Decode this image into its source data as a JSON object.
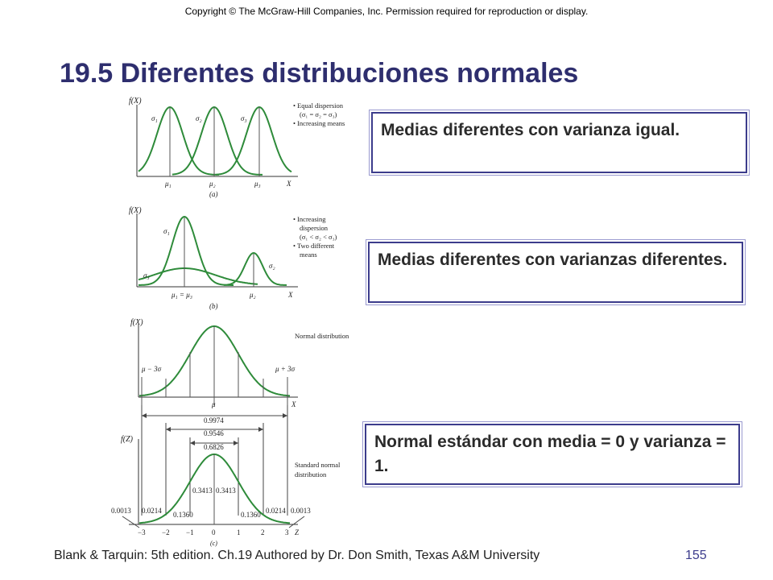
{
  "copyright": "Copyright © The McGraw-Hill Companies, Inc. Permission required for reproduction or display.",
  "title": "19.5 Diferentes distribuciones normales",
  "callouts": {
    "equal_variance": "Medias diferentes con varianza igual.",
    "different_variance": "Medias diferentes con varianzas diferentes.",
    "standard_normal": "Normal estándar con media = 0 y varianza = 1."
  },
  "figure": {
    "panel_a": {
      "ylabel": "f(X)",
      "xlabel": "X",
      "caption": "(a)",
      "sigma_labels": [
        "σ₁",
        "σ₂",
        "σ₃"
      ],
      "mu_labels": [
        "μ₁",
        "μ₂",
        "μ₃"
      ],
      "notes": [
        "• Equal dispersion",
        "(σ₁ = σ₂ = σ₃)",
        "• Increasing means"
      ]
    },
    "panel_b": {
      "ylabel": "f(X)",
      "xlabel": "X",
      "caption": "(b)",
      "sigma_labels": [
        "σ₁",
        "σ₂",
        "σ₃"
      ],
      "mu_labels": [
        "μ₁ = μ₃",
        "μ₂"
      ],
      "notes": [
        "• Increasing",
        "dispersion",
        "(σ₁ < σ₂ < σ₃)",
        "• Two different",
        "means"
      ]
    },
    "panel_c": {
      "ylabel_top": "f(X)",
      "ylabel_bottom": "f(Z)",
      "xlabel_top": "X",
      "xlabel_bottom": "Z",
      "caption": "(c)",
      "mu_label": "μ",
      "left_label": "μ − 3σ",
      "right_label": "μ + 3σ",
      "normal_label": "Normal distribution",
      "standard_label_1": "Standard normal",
      "standard_label_2": "distribution",
      "spans": [
        "0.9974",
        "0.9546",
        "0.6826"
      ],
      "areas": [
        "0.0013",
        "0.0214",
        "0.1360",
        "0.3413",
        "0.3413",
        "0.1360",
        "0.0214",
        "0.0013"
      ],
      "z_ticks": [
        "−3",
        "−2",
        "−1",
        "0",
        "1",
        "2",
        "3"
      ]
    }
  },
  "footer": "Blank & Tarquin: 5th edition. Ch.19 Authored by Dr. Don Smith, Texas A&M University",
  "page_number": "155",
  "colors": {
    "title": "#2e2e6e",
    "curve": "#2e8b3a",
    "border": "#3c3c8c",
    "page_number": "#3c3c8c"
  }
}
